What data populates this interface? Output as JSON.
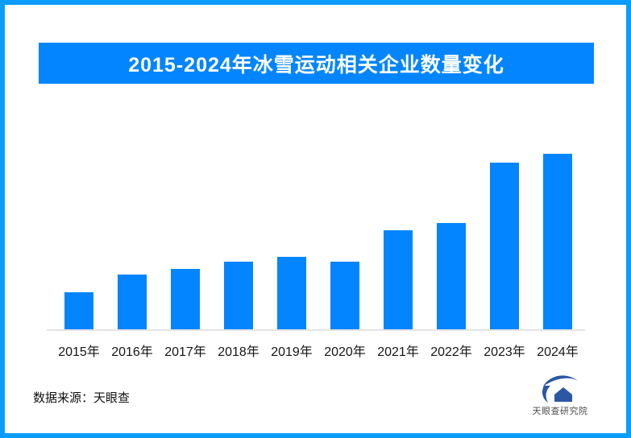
{
  "window": {
    "border_color": "#0a9dfb",
    "background": "#ffffff"
  },
  "header": {
    "title": "2015-2024年冰雪运动相关企业数量变化",
    "background": "#0385ff",
    "text_color": "#ffffff"
  },
  "chart_data": {
    "type": "bar",
    "title": "2015-2024年冰雪运动相关企业数量变化",
    "categories": [
      "2015年",
      "2016年",
      "2017年",
      "2018年",
      "2019年",
      "2020年",
      "2021年",
      "2022年",
      "2023年",
      "2024年"
    ],
    "values": [
      22,
      32,
      35,
      39,
      42,
      39,
      57,
      61,
      95,
      100
    ],
    "value_note": "no y-axis, gridlines or data labels are shown in the image; values are relative bar heights estimated from pixels, scaled so 2024 = 100",
    "bar_color": "#0385ff",
    "axis_line_color": "#e4e4e4",
    "xlabel": "",
    "ylabel": "",
    "ylim": [
      0,
      100
    ],
    "grid": false,
    "legend": false
  },
  "footer": {
    "source_label": "数据来源：天眼查"
  },
  "logo": {
    "text": "天眼查研究院",
    "mark_color": "#2b57a5",
    "text_color": "#4d4d4d"
  }
}
